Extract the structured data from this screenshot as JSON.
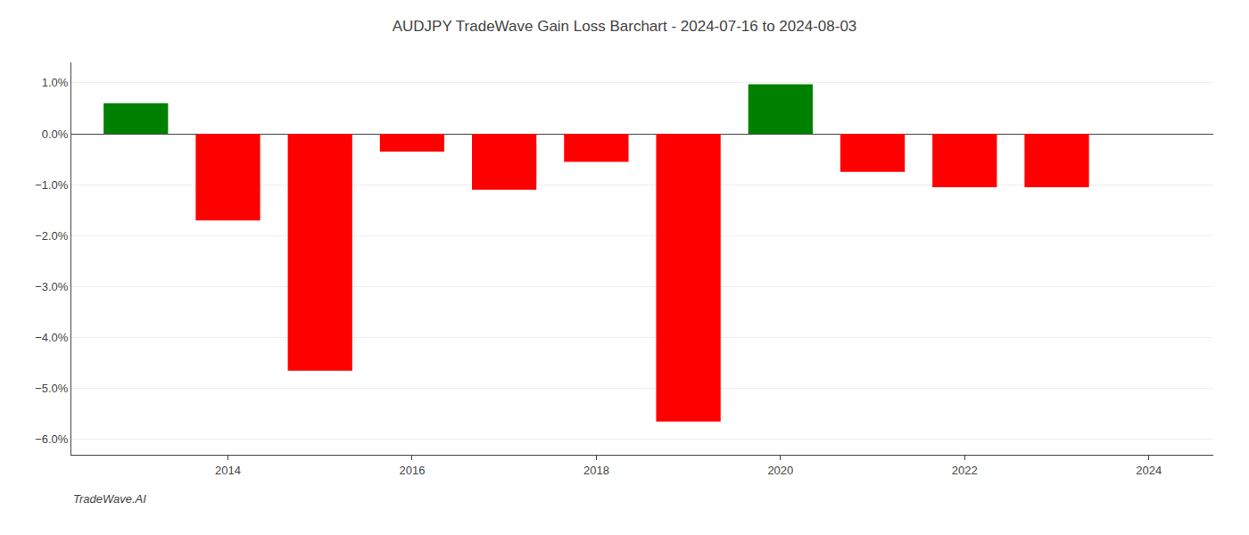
{
  "chart_data": {
    "type": "bar",
    "title": "AUDJPY TradeWave Gain Loss Barchart - 2024-07-16 to 2024-08-03",
    "annotations": [
      "TradeWave.AI"
    ],
    "x": [
      2013,
      2014,
      2015,
      2016,
      2017,
      2018,
      2019,
      2020,
      2021,
      2022,
      2023
    ],
    "values": [
      0.6,
      -1.7,
      -4.65,
      -0.35,
      -1.1,
      -0.55,
      -5.65,
      0.97,
      -0.75,
      -1.05,
      -1.05
    ],
    "colors": [
      "#008000",
      "#ff0000",
      "#ff0000",
      "#ff0000",
      "#ff0000",
      "#ff0000",
      "#ff0000",
      "#008000",
      "#ff0000",
      "#ff0000",
      "#ff0000"
    ],
    "xlim": [
      2012.3,
      2024.7
    ],
    "xticks": [
      2014,
      2016,
      2018,
      2020,
      2022,
      2024
    ],
    "ylim": [
      -6.3,
      1.4
    ],
    "yticks": [
      {
        "value": 1.0,
        "label": "1.0%"
      },
      {
        "value": 0.0,
        "label": "0.0%"
      },
      {
        "value": -1.0,
        "label": "−1.0%"
      },
      {
        "value": -2.0,
        "label": "−2.0%"
      },
      {
        "value": -3.0,
        "label": "−3.0%"
      },
      {
        "value": -4.0,
        "label": "−4.0%"
      },
      {
        "value": -5.0,
        "label": "−5.0%"
      },
      {
        "value": -6.0,
        "label": "−6.0%"
      }
    ],
    "grid": true
  }
}
